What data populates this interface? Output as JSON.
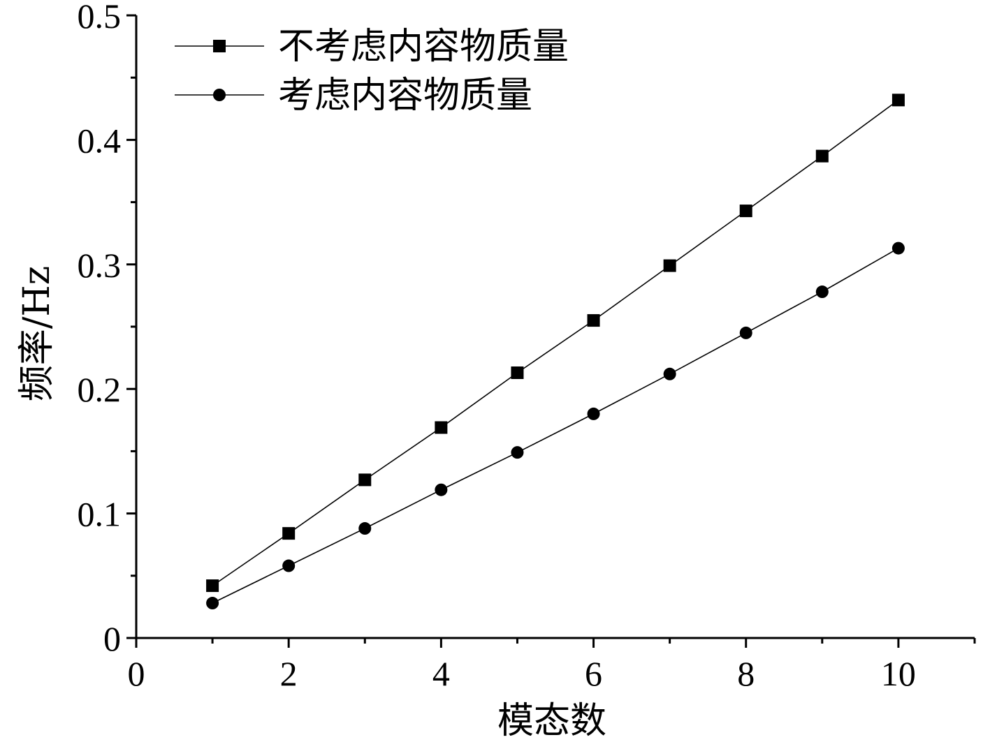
{
  "chart_data": {
    "type": "line",
    "title": "",
    "xlabel": "模态数",
    "ylabel": "频率/Hz",
    "xlim": [
      0,
      11
    ],
    "ylim": [
      0,
      0.5
    ],
    "x_ticks": [
      0,
      2,
      4,
      6,
      8,
      10
    ],
    "x_tick_labels": [
      "0",
      "2",
      "4",
      "6",
      "8",
      "10"
    ],
    "y_ticks": [
      0,
      0.1,
      0.2,
      0.3,
      0.4,
      0.5
    ],
    "y_tick_labels": [
      "0",
      "0.1",
      "0.2",
      "0.3",
      "0.4",
      "0.5"
    ],
    "grid": false,
    "legend_position": "top-left",
    "x": [
      1,
      2,
      3,
      4,
      5,
      6,
      7,
      8,
      9,
      10
    ],
    "series": [
      {
        "name": "不考虑内容物质量",
        "marker": "square",
        "color": "#000000",
        "values": [
          0.042,
          0.084,
          0.127,
          0.169,
          0.213,
          0.255,
          0.299,
          0.343,
          0.387,
          0.432
        ]
      },
      {
        "name": "考虑内容物质量",
        "marker": "circle",
        "color": "#000000",
        "values": [
          0.028,
          0.058,
          0.088,
          0.119,
          0.149,
          0.18,
          0.212,
          0.245,
          0.278,
          0.313
        ]
      }
    ]
  }
}
